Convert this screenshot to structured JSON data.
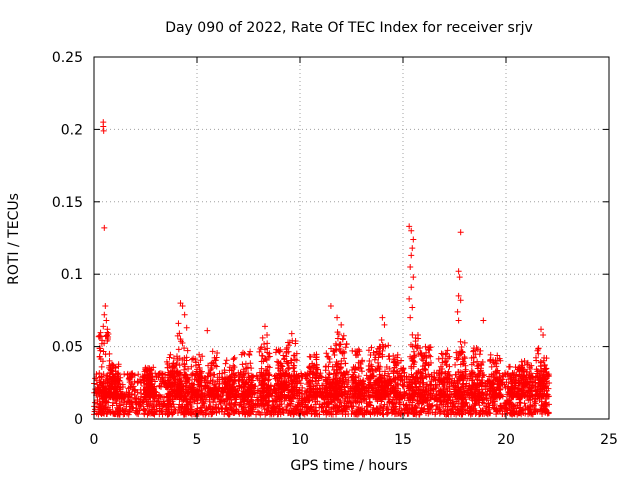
{
  "chart_data": {
    "type": "scatter",
    "title": "Day 090 of 2022, Rate Of TEC Index for receiver srjv",
    "xlabel": "GPS time / hours",
    "ylabel": "ROTI / TECUs",
    "xlim": [
      0,
      25
    ],
    "ylim": [
      0,
      0.25
    ],
    "x_ticks": [
      0,
      5,
      10,
      15,
      20,
      25
    ],
    "x_tick_labels": [
      "0",
      "5",
      "10",
      "15",
      "20",
      "25"
    ],
    "y_ticks": [
      0,
      0.05,
      0.1,
      0.15,
      0.2,
      0.25
    ],
    "y_tick_labels": [
      "0",
      "0.05",
      "0.1",
      "0.15",
      "0.2",
      "0.25"
    ],
    "grid": true,
    "marker": "plus",
    "color": "#ff0000",
    "data_x_range": [
      0,
      22.1
    ],
    "background_band": {
      "x": [
        0,
        22.1
      ],
      "y": [
        0.003,
        0.032
      ]
    },
    "notable_points": [
      {
        "x": 0.45,
        "y": 0.205
      },
      {
        "x": 0.45,
        "y": 0.202
      },
      {
        "x": 0.47,
        "y": 0.199
      },
      {
        "x": 0.5,
        "y": 0.132
      },
      {
        "x": 0.55,
        "y": 0.078
      },
      {
        "x": 0.5,
        "y": 0.072
      },
      {
        "x": 0.6,
        "y": 0.068
      },
      {
        "x": 0.45,
        "y": 0.064
      },
      {
        "x": 0.65,
        "y": 0.062
      },
      {
        "x": 4.2,
        "y": 0.08
      },
      {
        "x": 4.3,
        "y": 0.078
      },
      {
        "x": 4.4,
        "y": 0.072
      },
      {
        "x": 4.1,
        "y": 0.066
      },
      {
        "x": 4.5,
        "y": 0.063
      },
      {
        "x": 5.5,
        "y": 0.061
      },
      {
        "x": 8.3,
        "y": 0.064
      },
      {
        "x": 8.4,
        "y": 0.058
      },
      {
        "x": 9.6,
        "y": 0.059
      },
      {
        "x": 11.5,
        "y": 0.078
      },
      {
        "x": 11.8,
        "y": 0.07
      },
      {
        "x": 12.0,
        "y": 0.065
      },
      {
        "x": 14.0,
        "y": 0.07
      },
      {
        "x": 14.1,
        "y": 0.065
      },
      {
        "x": 15.3,
        "y": 0.133
      },
      {
        "x": 15.4,
        "y": 0.13
      },
      {
        "x": 15.5,
        "y": 0.124
      },
      {
        "x": 15.45,
        "y": 0.118
      },
      {
        "x": 15.4,
        "y": 0.113
      },
      {
        "x": 15.35,
        "y": 0.105
      },
      {
        "x": 15.5,
        "y": 0.098
      },
      {
        "x": 15.4,
        "y": 0.091
      },
      {
        "x": 15.3,
        "y": 0.083
      },
      {
        "x": 15.45,
        "y": 0.077
      },
      {
        "x": 15.35,
        "y": 0.07
      },
      {
        "x": 17.8,
        "y": 0.129
      },
      {
        "x": 17.7,
        "y": 0.102
      },
      {
        "x": 17.75,
        "y": 0.098
      },
      {
        "x": 17.7,
        "y": 0.085
      },
      {
        "x": 17.8,
        "y": 0.082
      },
      {
        "x": 17.65,
        "y": 0.074
      },
      {
        "x": 17.7,
        "y": 0.068
      },
      {
        "x": 18.9,
        "y": 0.068
      },
      {
        "x": 21.7,
        "y": 0.062
      },
      {
        "x": 21.8,
        "y": 0.058
      }
    ],
    "clusters": [
      {
        "x_center": 0.5,
        "y_max": 0.062
      },
      {
        "x_center": 1.0,
        "y_max": 0.038
      },
      {
        "x_center": 2.7,
        "y_max": 0.036
      },
      {
        "x_center": 3.8,
        "y_max": 0.045
      },
      {
        "x_center": 4.3,
        "y_max": 0.06
      },
      {
        "x_center": 5.0,
        "y_max": 0.045
      },
      {
        "x_center": 5.8,
        "y_max": 0.048
      },
      {
        "x_center": 6.6,
        "y_max": 0.043
      },
      {
        "x_center": 7.4,
        "y_max": 0.047
      },
      {
        "x_center": 8.3,
        "y_max": 0.056
      },
      {
        "x_center": 9.1,
        "y_max": 0.05
      },
      {
        "x_center": 9.6,
        "y_max": 0.055
      },
      {
        "x_center": 10.6,
        "y_max": 0.045
      },
      {
        "x_center": 11.5,
        "y_max": 0.05
      },
      {
        "x_center": 12.0,
        "y_max": 0.06
      },
      {
        "x_center": 12.8,
        "y_max": 0.048
      },
      {
        "x_center": 13.6,
        "y_max": 0.05
      },
      {
        "x_center": 14.1,
        "y_max": 0.055
      },
      {
        "x_center": 14.8,
        "y_max": 0.045
      },
      {
        "x_center": 15.5,
        "y_max": 0.06
      },
      {
        "x_center": 16.1,
        "y_max": 0.05
      },
      {
        "x_center": 17.0,
        "y_max": 0.048
      },
      {
        "x_center": 17.8,
        "y_max": 0.055
      },
      {
        "x_center": 18.6,
        "y_max": 0.05
      },
      {
        "x_center": 19.5,
        "y_max": 0.045
      },
      {
        "x_center": 20.4,
        "y_max": 0.04
      },
      {
        "x_center": 21.0,
        "y_max": 0.042
      },
      {
        "x_center": 21.7,
        "y_max": 0.05
      }
    ]
  }
}
